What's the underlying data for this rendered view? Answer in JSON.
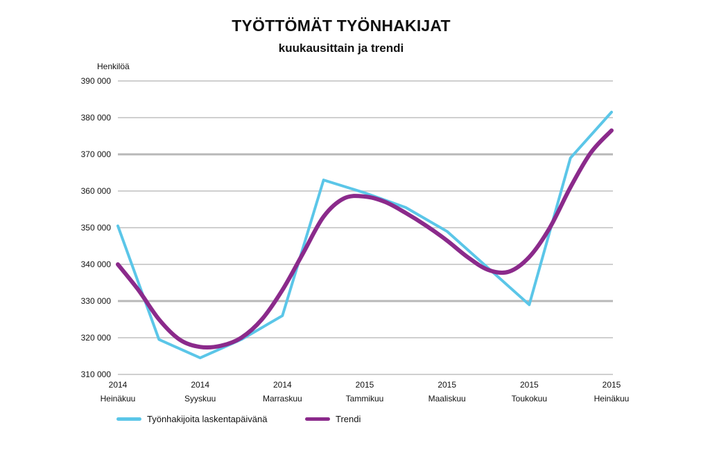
{
  "chart_data": {
    "type": "line",
    "title": "TYÖTTÖMÄT TYÖNHAKIJAT",
    "subtitle": "kuukausittain ja trendi",
    "ylabel": "Henkilöä",
    "xlabel": "",
    "ylim": [
      310000,
      390000
    ],
    "yticks": [
      {
        "value": 390000,
        "label": "390 000"
      },
      {
        "value": 380000,
        "label": "380 000"
      },
      {
        "value": 370000,
        "label": "370 000"
      },
      {
        "value": 360000,
        "label": "360 000"
      },
      {
        "value": 350000,
        "label": "350 000"
      },
      {
        "value": 340000,
        "label": "340 000"
      },
      {
        "value": 330000,
        "label": "330 000"
      },
      {
        "value": 320000,
        "label": "320 000"
      },
      {
        "value": 310000,
        "label": "310 000"
      }
    ],
    "xlim": [
      0,
      12
    ],
    "xticks": [
      {
        "x": 0,
        "year": "2014",
        "month": "Heinäkuu"
      },
      {
        "x": 2,
        "year": "2014",
        "month": "Syyskuu"
      },
      {
        "x": 4,
        "year": "2014",
        "month": "Marraskuu"
      },
      {
        "x": 6,
        "year": "2015",
        "month": "Tammikuu"
      },
      {
        "x": 8,
        "year": "2015",
        "month": "Maaliskuu"
      },
      {
        "x": 10,
        "year": "2015",
        "month": "Toukokuu"
      },
      {
        "x": 12,
        "year": "2015",
        "month": "Heinäkuu"
      }
    ],
    "series": [
      {
        "name": "Työnhakijoita laskentapäivänä",
        "color": "#5bc6e8",
        "x": [
          0,
          1,
          2,
          3,
          4,
          5,
          6,
          7,
          8,
          9,
          10,
          11,
          12
        ],
        "values": [
          350500,
          319500,
          314500,
          319500,
          326000,
          363000,
          359500,
          355500,
          349000,
          339000,
          329000,
          369000,
          381500
        ]
      },
      {
        "name": "Trendi",
        "color": "#8b2a8b",
        "x": [
          0,
          0.5,
          1,
          1.5,
          2,
          2.5,
          3,
          3.5,
          4,
          4.5,
          5,
          5.5,
          6,
          6.5,
          7,
          7.5,
          8,
          8.5,
          9,
          9.5,
          10,
          10.5,
          11,
          11.5,
          12
        ],
        "values": [
          340000,
          333000,
          325000,
          319500,
          317500,
          317800,
          320000,
          325000,
          333000,
          343000,
          353000,
          358000,
          358500,
          357000,
          354000,
          350500,
          346500,
          342000,
          338500,
          338000,
          342000,
          350000,
          361000,
          370500,
          376500
        ]
      }
    ]
  }
}
